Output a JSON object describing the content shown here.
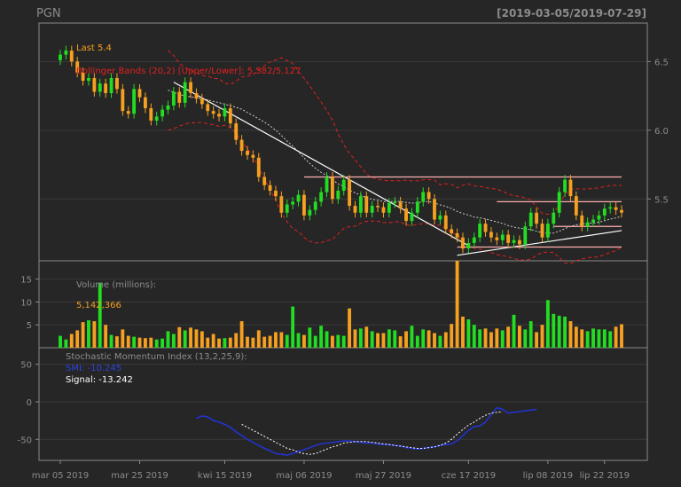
{
  "header": {
    "ticker": "PGN",
    "date_range": "[2019-03-05/2019-07-29]"
  },
  "colors": {
    "background": "#262626",
    "panel_border": "#8a8a8a",
    "grid": "#3a3a3a",
    "axis_text": "#8c8c8c",
    "up": "#22dd22",
    "down": "#f5a020",
    "bbands": "#e02020",
    "trendline": "#ffffff",
    "horizontal_levels": "#ffb0b0",
    "smi": "#2233cc",
    "signal": "#ffffff"
  },
  "chart_data": [
    {
      "type": "candlestick",
      "panel": "price",
      "ylim": [
        5.05,
        6.78
      ],
      "yticks": [
        5.5,
        6.0,
        6.5
      ],
      "x_ticks": [
        "mar 05 2019",
        "mar 25 2019",
        "kwi 15 2019",
        "maj 06 2019",
        "maj 27 2019",
        "cze 17 2019",
        "lip 08 2019",
        "lip 22 2019"
      ],
      "legend": {
        "last_label": "Last 5.4",
        "bbands_label": "Bollinger Bands (20,2) [Upper/Lower]: 5.582/5.127"
      },
      "close": [
        6.55,
        6.58,
        6.5,
        6.42,
        6.36,
        6.38,
        6.28,
        6.34,
        6.27,
        6.38,
        6.3,
        6.14,
        6.12,
        6.3,
        6.24,
        6.16,
        6.07,
        6.1,
        6.15,
        6.18,
        6.28,
        6.2,
        6.35,
        6.27,
        6.23,
        6.19,
        6.14,
        6.12,
        6.1,
        6.16,
        6.05,
        5.93,
        5.85,
        5.82,
        5.8,
        5.66,
        5.6,
        5.56,
        5.52,
        5.4,
        5.46,
        5.48,
        5.53,
        5.38,
        5.42,
        5.48,
        5.55,
        5.66,
        5.5,
        5.56,
        5.64,
        5.45,
        5.4,
        5.52,
        5.4,
        5.45,
        5.44,
        5.4,
        5.47,
        5.48,
        5.43,
        5.34,
        5.4,
        5.48,
        5.55,
        5.5,
        5.35,
        5.38,
        5.28,
        5.25,
        5.22,
        5.14,
        5.18,
        5.22,
        5.32,
        5.26,
        5.22,
        5.2,
        5.24,
        5.18,
        5.2,
        5.17,
        5.3,
        5.4,
        5.32,
        5.22,
        5.32,
        5.4,
        5.55,
        5.64,
        5.52,
        5.38,
        5.3,
        5.33,
        5.35,
        5.38,
        5.43,
        5.44,
        5.42,
        5.4
      ]
    },
    {
      "type": "bar",
      "panel": "volume",
      "title": "Volume (millions):",
      "last_value_label": "5,142,366",
      "ylim": [
        0,
        19
      ],
      "yticks": [
        5,
        10,
        15
      ],
      "values": [
        2.6,
        1.8,
        3.0,
        3.8,
        5.6,
        6.0,
        5.8,
        14.2,
        5.0,
        2.8,
        2.5,
        4.0,
        2.6,
        2.4,
        2.2,
        2.1,
        2.2,
        1.8,
        2.0,
        3.6,
        3.0,
        4.5,
        3.8,
        4.4,
        4.0,
        3.6,
        2.2,
        3.0,
        2.0,
        2.1,
        2.2,
        3.2,
        5.8,
        2.4,
        2.2,
        3.8,
        2.4,
        2.6,
        3.4,
        3.4,
        2.8,
        9.0,
        3.2,
        2.8,
        4.4,
        2.6,
        4.8,
        3.6,
        2.6,
        2.8,
        2.6,
        8.6,
        4.0,
        4.2,
        4.6,
        3.6,
        3.2,
        3.2,
        4.0,
        3.8,
        2.5,
        3.6,
        4.8,
        2.6,
        4.0,
        3.8,
        3.2,
        2.6,
        3.4,
        5.2,
        19.0,
        6.8,
        6.2,
        5.0,
        4.0,
        4.2,
        3.4,
        4.2,
        3.8,
        4.6,
        7.2,
        4.8,
        4.0,
        5.8,
        3.4,
        5.0,
        10.4,
        7.4,
        7.0,
        6.8,
        5.8,
        4.6,
        4.0,
        3.6,
        4.2,
        4.0,
        4.0,
        3.6,
        4.6,
        5.14
      ]
    },
    {
      "type": "line",
      "panel": "indicator",
      "title": "Stochastic Momentum Index (13,2,25,9):",
      "smi_label": "SMI: -10.245",
      "signal_label": "Signal: -13.242",
      "ylim": [
        -78,
        72
      ],
      "yticks": [
        -50,
        0,
        50
      ],
      "series": [
        {
          "name": "SMI",
          "start_index": 24,
          "values": [
            -22,
            -19,
            -20,
            -25,
            -27,
            -30,
            -34,
            -40,
            -45,
            -50,
            -54,
            -58,
            -62,
            -65,
            -69,
            -70,
            -71,
            -69,
            -66,
            -64,
            -61,
            -58,
            -56,
            -55,
            -54,
            -53,
            -52,
            -52,
            -53,
            -54,
            -55,
            -55,
            -56,
            -57,
            -57,
            -58,
            -59,
            -61,
            -62,
            -63,
            -62,
            -61,
            -60,
            -58,
            -57,
            -56,
            -52,
            -45,
            -38,
            -33,
            -32,
            -27,
            -17,
            -8,
            -10,
            -15,
            -14,
            -13,
            -12,
            -11,
            -10.245
          ]
        },
        {
          "name": "Signal",
          "start_index": 32,
          "values": [
            -30,
            -34,
            -38,
            -42,
            -46,
            -50,
            -54,
            -58,
            -62,
            -64,
            -67,
            -69,
            -70,
            -69,
            -66,
            -63,
            -60,
            -58,
            -55,
            -54,
            -53,
            -53,
            -53,
            -54,
            -55,
            -56,
            -57,
            -58,
            -59,
            -60,
            -61,
            -62,
            -62,
            -61,
            -60,
            -58,
            -55,
            -50,
            -43,
            -37,
            -31,
            -27,
            -22,
            -18,
            -15,
            -14,
            -13.242
          ]
        }
      ]
    }
  ]
}
